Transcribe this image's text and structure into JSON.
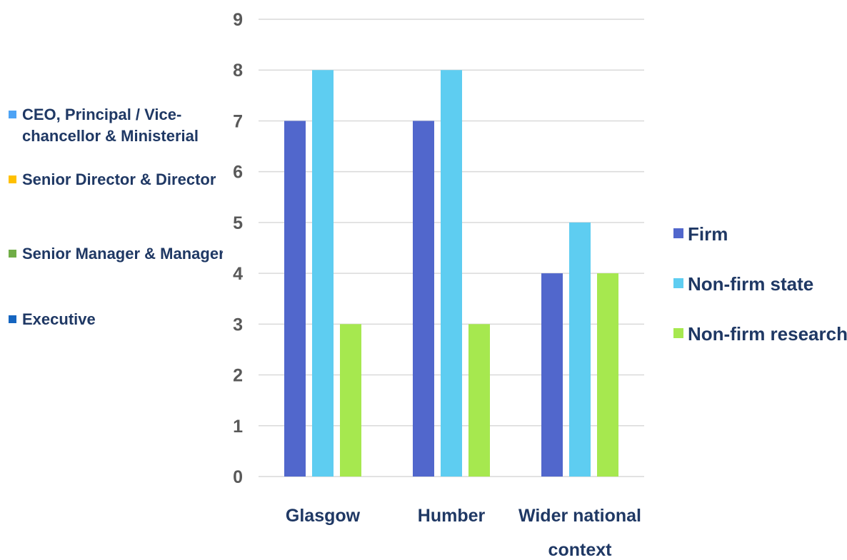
{
  "left_legend": {
    "items": [
      {
        "line1": "CEO, Principal / Vice-",
        "line2": "chancellor & Ministerial",
        "color": "#4da3f5"
      },
      {
        "line1": "Senior Director & Director",
        "line2": "",
        "color": "#ffc000"
      },
      {
        "line1": "Senior Manager & Manager",
        "line2": "",
        "color": "#70ad47"
      },
      {
        "line1": "Executive",
        "line2": "",
        "color": "#1565c0"
      }
    ]
  },
  "chart_data": {
    "type": "bar",
    "categories": [
      [
        "Glasgow"
      ],
      [
        "Humber"
      ],
      [
        "Wider national",
        "context"
      ]
    ],
    "series": [
      {
        "name": "Firm",
        "values": [
          7,
          7,
          4
        ],
        "color": "#5167cc"
      },
      {
        "name": "Non-firm state",
        "values": [
          8,
          8,
          5
        ],
        "color": "#5ecdf1"
      },
      {
        "name": "Non-firm research",
        "values": [
          3,
          3,
          4
        ],
        "color": "#a6e84f"
      }
    ],
    "ylim": [
      0,
      9
    ],
    "yticks": [
      0,
      1,
      2,
      3,
      4,
      5,
      6,
      7,
      8,
      9
    ],
    "grid": true,
    "legend_position": "right"
  }
}
